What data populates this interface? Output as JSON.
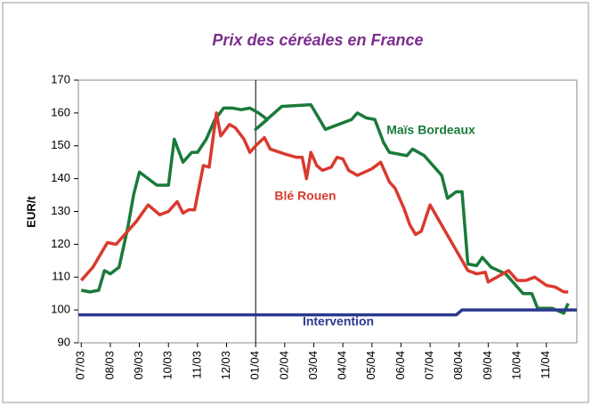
{
  "chart_data": {
    "type": "line",
    "title": "Prix des céréales en France",
    "ylabel": "EUR/t",
    "ylim": [
      90,
      170
    ],
    "yticks": [
      90,
      100,
      110,
      120,
      130,
      140,
      150,
      160,
      170
    ],
    "xlim": [
      -0.1,
      17.05
    ],
    "xticks": [
      {
        "value": 0,
        "label": "07/03"
      },
      {
        "value": 1,
        "label": "08/03"
      },
      {
        "value": 2,
        "label": "09/03"
      },
      {
        "value": 3,
        "label": "10/03"
      },
      {
        "value": 4,
        "label": "11/03"
      },
      {
        "value": 5,
        "label": "12/03"
      },
      {
        "value": 6,
        "label": "01/04"
      },
      {
        "value": 7,
        "label": "02/04"
      },
      {
        "value": 8,
        "label": "03/04"
      },
      {
        "value": 9,
        "label": "04/04"
      },
      {
        "value": 10,
        "label": "05/04"
      },
      {
        "value": 11,
        "label": "06/04"
      },
      {
        "value": 12,
        "label": "07/04"
      },
      {
        "value": 13,
        "label": "08/04"
      },
      {
        "value": 14,
        "label": "09/04"
      },
      {
        "value": 15,
        "label": "10/04"
      },
      {
        "value": 16,
        "label": "11/04"
      }
    ],
    "vline": 6,
    "grid": false,
    "series": [
      {
        "name": "Maïs Bordeaux",
        "color": "#1a7a3a",
        "x": [
          0,
          0.3,
          0.6,
          0.8,
          1.0,
          1.3,
          1.6,
          1.8,
          2.0,
          2.3,
          2.6,
          3.0,
          3.2,
          3.5,
          3.8,
          4.0,
          4.3,
          4.6,
          4.9,
          5.2,
          5.5,
          5.8,
          6.1,
          6.4,
          6.0,
          6.9,
          7.9,
          8.4,
          9.3,
          9.5,
          9.8,
          10.1,
          10.4,
          10.6,
          11.2,
          11.4,
          11.8,
          12.1,
          12.4,
          12.6,
          12.9,
          13.1,
          13.3,
          13.6,
          13.8,
          14.1,
          14.6,
          14.8,
          15.2,
          15.5,
          15.7,
          16.2,
          16.6,
          16.75
        ],
        "values": [
          106,
          105.5,
          106,
          112,
          111,
          113,
          125,
          135,
          142,
          140,
          138,
          138,
          152,
          145,
          148,
          148,
          152,
          158,
          161.5,
          161.5,
          161,
          161.5,
          160,
          158,
          155,
          162,
          162.5,
          155,
          158,
          160,
          158.5,
          158,
          151,
          148,
          147,
          149,
          147,
          144,
          141,
          134,
          136,
          136,
          114,
          113.5,
          116,
          113,
          111,
          109,
          105,
          105,
          100.5,
          100.5,
          99,
          102
        ]
      },
      {
        "name": "Blé Rouen",
        "color": "#d93a2f",
        "x": [
          0,
          0.4,
          0.9,
          1.2,
          1.5,
          1.9,
          2.3,
          2.7,
          3.0,
          3.3,
          3.5,
          3.7,
          3.9,
          4.2,
          4.4,
          4.65,
          4.8,
          5.1,
          5.3,
          5.6,
          5.8,
          6.0,
          6.3,
          6.5,
          7.0,
          7.4,
          7.6,
          7.75,
          7.9,
          8.1,
          8.3,
          8.6,
          8.8,
          9.0,
          9.2,
          9.5,
          10.0,
          10.3,
          10.6,
          10.8,
          11.1,
          11.3,
          11.5,
          11.7,
          12.0,
          13.3,
          13.6,
          13.9,
          14.0,
          14.3,
          14.7,
          15.0,
          15.3,
          15.6,
          16.0,
          16.3,
          16.6,
          16.75
        ],
        "values": [
          109,
          113,
          120.5,
          120,
          123,
          127,
          132,
          129,
          130,
          133,
          129.5,
          130.5,
          130.5,
          144,
          143.5,
          160,
          153,
          156.5,
          155.5,
          152,
          148,
          150,
          152.5,
          149,
          147.5,
          146.5,
          146.5,
          140,
          148,
          144,
          142.5,
          143.5,
          146.5,
          146,
          142.5,
          141,
          143,
          145,
          139,
          137,
          131,
          126,
          123,
          124,
          132,
          112,
          111,
          111.5,
          108.5,
          110,
          112,
          109,
          109,
          110,
          107.5,
          107,
          105.5,
          105.5
        ]
      },
      {
        "name": "Intervention",
        "color": "#2b3a8f",
        "x": [
          -0.1,
          12.9,
          13.1,
          17.05
        ],
        "values": [
          98.5,
          98.5,
          100,
          100
        ]
      }
    ]
  }
}
